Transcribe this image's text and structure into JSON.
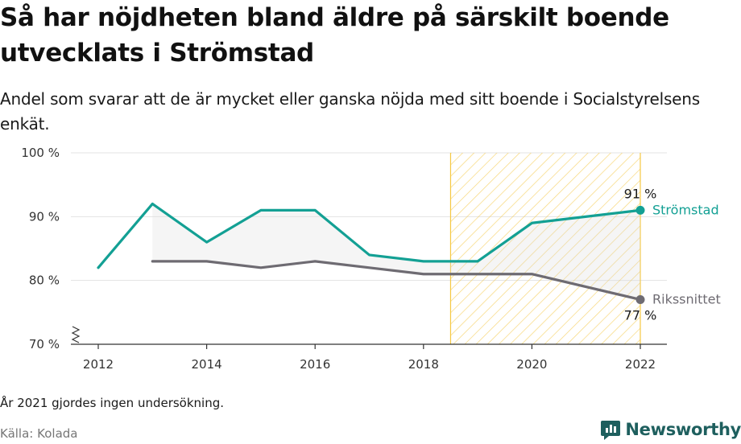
{
  "header": {
    "title": "Så har nöjdheten bland äldre på särskilt boende utvecklats i Strömstad",
    "subtitle": "Andel som svarar att de är mycket eller ganska nöjda med sitt boende i Socialstyrelsens enkät."
  },
  "footer": {
    "note": "År 2021 gjordes ingen undersökning.",
    "source_label": "Källa:",
    "source_value": "Kolada",
    "brand": "Newsworthy"
  },
  "colors": {
    "stromstad": "#13a094",
    "riket": "#6e6b72",
    "highlight": "#f5c842",
    "brand": "#1e5f5e"
  },
  "chart_data": {
    "type": "line",
    "x_ticks": [
      "2012",
      "2014",
      "2016",
      "2018",
      "2020",
      "2022"
    ],
    "y_ticks": [
      "70 %",
      "80 %",
      "90 %",
      "100 %"
    ],
    "ylim": [
      70,
      100
    ],
    "xlim": [
      2012,
      2022
    ],
    "axis_break": true,
    "highlight_range": [
      2018.5,
      2022
    ],
    "series": [
      {
        "name": "Strömstad",
        "color": "#13a094",
        "x": [
          2012,
          2013,
          2014,
          2015,
          2016,
          2017,
          2018,
          2019,
          2020,
          2022
        ],
        "values": [
          82,
          92,
          86,
          91,
          91,
          84,
          83,
          83,
          89,
          91
        ],
        "end_label": "91 %"
      },
      {
        "name": "Rikssnittet",
        "color": "#6e6b72",
        "x": [
          2013,
          2014,
          2015,
          2016,
          2017,
          2018,
          2019,
          2020,
          2022
        ],
        "values": [
          83,
          83,
          82,
          83,
          82,
          81,
          81,
          81,
          77
        ],
        "end_label": "77 %"
      }
    ]
  }
}
